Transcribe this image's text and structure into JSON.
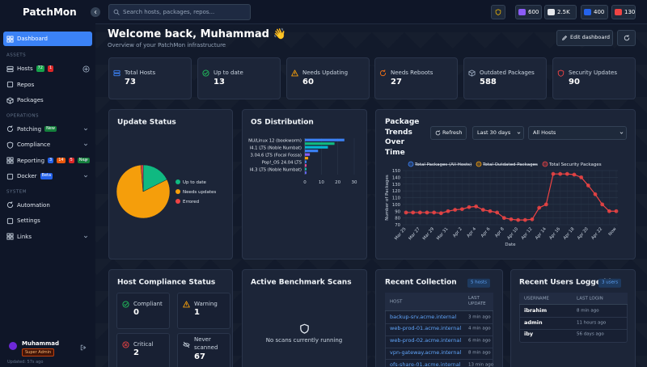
{
  "topbar": {
    "logo": "PatchMon",
    "search_placeholder": "Search hosts, packages, repos...",
    "counters": [
      "600",
      "2.5K",
      "400",
      "130"
    ]
  },
  "sidebar": {
    "dashboard": "Dashboard",
    "sections": [
      {
        "title": "ASSETS",
        "items": [
          {
            "label": "Hosts",
            "badges": [
              {
                "text": "72",
                "color": "#16a34a"
              },
              {
                "text": "1",
                "color": "#dc2626"
              }
            ]
          },
          {
            "label": "Repos"
          },
          {
            "label": "Packages"
          }
        ]
      },
      {
        "title": "OPERATIONS",
        "items": [
          {
            "label": "Patching",
            "badges": [
              {
                "text": "New",
                "color": "#15803d"
              }
            ]
          },
          {
            "label": "Compliance"
          },
          {
            "label": "Reporting",
            "badges": [
              {
                "text": "3",
                "color": "#2563eb"
              },
              {
                "text": "14",
                "color": "#ea580c"
              },
              {
                "text": "5",
                "color": "#dc2626"
              },
              {
                "text": "New",
                "color": "#15803d"
              }
            ]
          },
          {
            "label": "Docker",
            "badges": [
              {
                "text": "Beta",
                "color": "#2563eb"
              }
            ]
          }
        ]
      },
      {
        "title": "SYSTEM",
        "items": [
          {
            "label": "Automation"
          },
          {
            "label": "Settings"
          },
          {
            "label": "Links"
          }
        ]
      }
    ],
    "user": {
      "name": "Muhammad",
      "role": "Super Admin",
      "updated": "Updated: 57s ago"
    }
  },
  "header": {
    "title": "Welcome back, Muhammad 👋",
    "subtitle": "Overview of your PatchMon infrastructure",
    "edit_button": "Edit dashboard"
  },
  "stats": [
    {
      "label": "Total Hosts",
      "value": 73
    },
    {
      "label": "Up to date",
      "value": 13
    },
    {
      "label": "Needs Updating",
      "value": 60
    },
    {
      "label": "Needs Reboots",
      "value": 27
    },
    {
      "label": "Outdated Packages",
      "value": 588
    },
    {
      "label": "Security Updates",
      "value": 90
    }
  ],
  "update_status": {
    "title": "Update Status",
    "chart": {
      "type": "pie",
      "categories": [
        "Up to date",
        "Needs updates",
        "Errored"
      ],
      "values": [
        13,
        60,
        1
      ],
      "colors": [
        "#10b981",
        "#f59e0b",
        "#ef4444"
      ]
    }
  },
  "os_distribution": {
    "title": "OS Distribution",
    "chart": {
      "type": "bar",
      "orientation": "horizontal",
      "categories": [
        "NU/Linux 12 (bookworm)",
        null,
        "l4.1 LTS (Noble Numbat)",
        null,
        "3.04.6 LTS (Focal Fossa)",
        null,
        "Pop!_OS 24.04 LTS",
        null,
        "l4.3 LTS (Noble Numbat)",
        null
      ],
      "values": [
        24,
        18,
        14,
        8,
        3,
        2,
        1,
        1,
        1,
        1
      ],
      "colors": [
        "#3b82f6",
        "#10b981",
        "#06b6d4",
        "#3b82f6",
        "#8b5cf6",
        "#f59e0b",
        "#3b82f6",
        "#ec4899",
        "#14b8a6",
        "#6366f1"
      ],
      "xlim": [
        0,
        30
      ],
      "xticks": [
        0,
        10,
        20,
        30
      ],
      "grid": true
    }
  },
  "package_trends": {
    "title": "Package Trends Over Time",
    "refresh": "Refresh",
    "range": "Last 30 days",
    "hosts": "All Hosts",
    "chart": {
      "type": "line",
      "xlabel": "Date",
      "ylabel": "Number of Packages",
      "categories": [
        "Mar 25",
        null,
        "Mar 27",
        null,
        "Mar 29",
        null,
        "Mar 31",
        null,
        "Apr 2",
        null,
        "Apr 4",
        null,
        "Apr 6",
        null,
        "Apr 8",
        null,
        "Apr 10",
        null,
        "Apr 12",
        null,
        "Apr 14",
        null,
        "Apr 16",
        null,
        "Apr 18",
        null,
        "Apr 20",
        null,
        "Apr 22",
        null,
        "Now"
      ],
      "series": [
        {
          "name": "Total Packages (All Hosts)",
          "color": "#3b82f6",
          "hidden": true
        },
        {
          "name": "Total Outdated Packages",
          "color": "#f59e0b",
          "hidden": true
        },
        {
          "name": "Total Security Packages",
          "color": "#ef4444",
          "values": [
            88,
            88,
            88,
            88,
            88,
            87,
            90,
            92,
            93,
            96,
            97,
            92,
            90,
            88,
            80,
            78,
            77,
            77,
            78,
            95,
            100,
            145,
            145,
            145,
            144,
            140,
            128,
            115,
            100,
            90,
            90
          ]
        }
      ],
      "ylim": [
        70,
        150
      ],
      "yticks": [
        70,
        80,
        90,
        100,
        110,
        120,
        130,
        140,
        150
      ],
      "grid": true
    }
  },
  "compliance": {
    "title": "Host Compliance Status",
    "items": [
      {
        "label": "Compliant",
        "value": 0
      },
      {
        "label": "Warning",
        "value": 1
      },
      {
        "label": "Critical",
        "value": 2
      },
      {
        "label": "Never scanned",
        "value": 67
      }
    ]
  },
  "benchmark": {
    "title": "Active Benchmark Scans",
    "empty": "No scans currently running"
  },
  "recent_collection": {
    "title": "Recent Collection",
    "badge": "5 hosts",
    "columns": [
      "HOST",
      "LAST UPDATE"
    ],
    "rows": [
      [
        "backup-srv.acme.internal",
        "3 min ago"
      ],
      [
        "web-prod-01.acme.internal",
        "4 min ago"
      ],
      [
        "web-prod-02.acme.internal",
        "6 min ago"
      ],
      [
        "vpn-gateway.acme.internal",
        "8 min ago"
      ],
      [
        "ofs-share-01.acme.internal",
        "13 min ago"
      ]
    ]
  },
  "recent_users": {
    "title": "Recent Users Logged in",
    "badge": "3 users",
    "columns": [
      "USERNAME",
      "LAST LOGIN"
    ],
    "rows": [
      [
        "ibrahim",
        "8 min ago"
      ],
      [
        "admin",
        "11 hours ago"
      ],
      [
        "iby",
        "56 days ago"
      ]
    ]
  }
}
